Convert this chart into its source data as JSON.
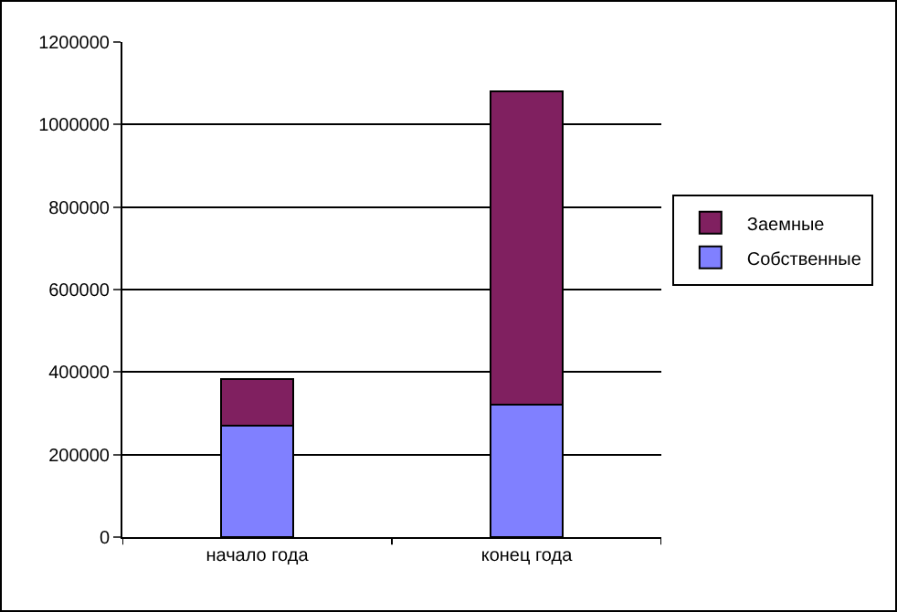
{
  "chart_data": {
    "type": "bar",
    "stacked": true,
    "categories": [
      "начало года",
      "конец года"
    ],
    "series": [
      {
        "name": "Собственные",
        "color": "#8080ff",
        "values": [
          270000,
          320000
        ]
      },
      {
        "name": "Заемные",
        "color": "#802060",
        "values": [
          112000,
          760000
        ]
      }
    ],
    "ylim": [
      0,
      1200000
    ],
    "yticks": [
      0,
      200000,
      400000,
      600000,
      800000,
      1000000,
      1200000
    ],
    "grid": "y",
    "legend": "right"
  }
}
